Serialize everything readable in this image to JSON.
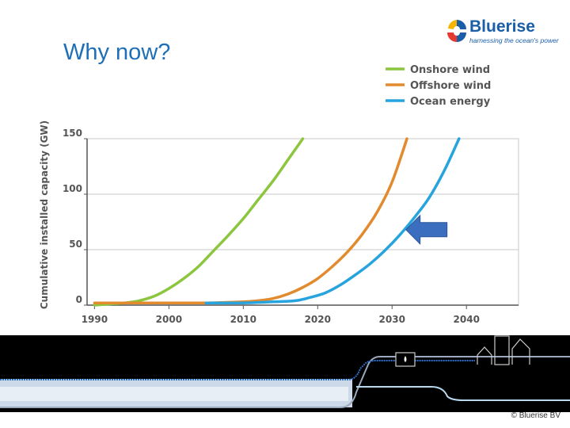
{
  "slide": {
    "title": "Why now?",
    "copyright": "© Bluerise BV"
  },
  "logo": {
    "name": "Bluerise",
    "tagline": "harnessing the ocean's power",
    "colors": [
      "#e53a2f",
      "#f5b400",
      "#1a5ea8"
    ]
  },
  "chart_data": {
    "type": "line",
    "ylabel": "Cumulative installed capacity (GW)",
    "xlabel": "",
    "xlim": [
      1989,
      2047
    ],
    "ylim": [
      0,
      150
    ],
    "xticks": [
      1990,
      2000,
      2010,
      2020,
      2030,
      2040
    ],
    "yticks": [
      0,
      50,
      100,
      150
    ],
    "grid": true,
    "legend_position": "top-right",
    "series": [
      {
        "name": "Onshore wind",
        "color": "#8cc63f",
        "x": [
          1990,
          1992,
          1994,
          1996,
          1998,
          2000,
          2002,
          2004,
          2006,
          2008,
          2010,
          2012,
          2014,
          2016,
          2018
        ],
        "y": [
          0,
          1,
          2,
          4,
          8,
          15,
          24,
          35,
          49,
          63,
          78,
          95,
          112,
          131,
          150
        ]
      },
      {
        "name": "Offshore wind",
        "color": "#e28a2e",
        "x": [
          1990,
          2000,
          2005,
          2010,
          2012,
          2014,
          2016,
          2018,
          2020,
          2022,
          2024,
          2026,
          2028,
          2030,
          2032
        ],
        "y": [
          2,
          2,
          2,
          3,
          4,
          6,
          10,
          16,
          24,
          35,
          48,
          64,
          84,
          111,
          150
        ]
      },
      {
        "name": "Ocean energy",
        "color": "#27a4dd",
        "x": [
          2005,
          2010,
          2014,
          2017,
          2019,
          2021,
          2023,
          2025,
          2027,
          2029,
          2031,
          2033,
          2035,
          2037,
          2039
        ],
        "y": [
          2,
          2,
          3,
          4,
          7,
          11,
          18,
          27,
          37,
          49,
          63,
          79,
          97,
          121,
          150
        ]
      }
    ],
    "annotation": {
      "type": "arrow",
      "points_to": {
        "x": 2031,
        "y": 68
      },
      "color": "#3b6ebf"
    }
  }
}
